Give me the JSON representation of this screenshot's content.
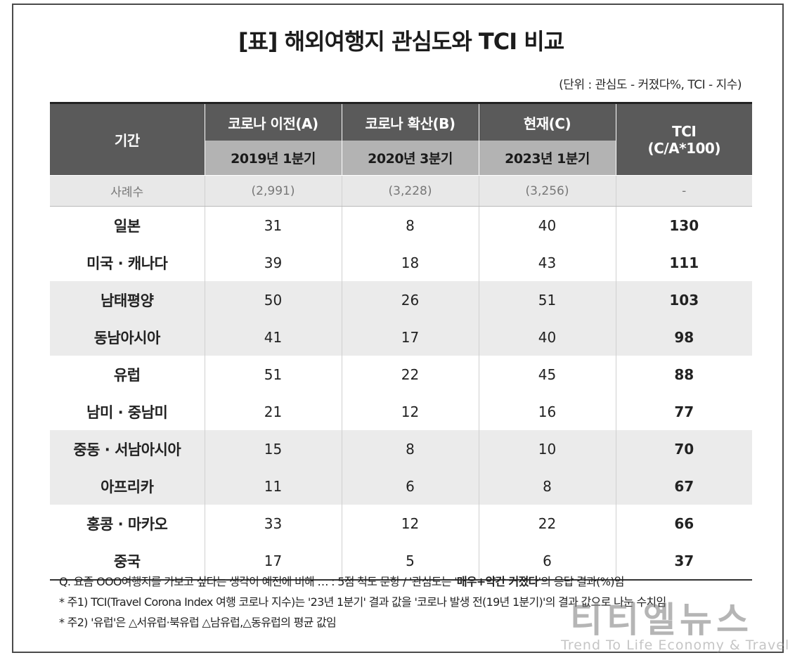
{
  "title": "[표] 해외여행지 관심도와 TCI 비교",
  "unit": "(단위 : 관심도 - 커졌다%, TCI - 지수)",
  "header": {
    "period_label": "기간",
    "col_a": "코로나 이전(A)",
    "col_b": "코로나 확산(B)",
    "col_c": "현재(C)",
    "col_a_sub": "2019년 1분기",
    "col_b_sub": "2020년 3분기",
    "col_c_sub": "2023년 1분기",
    "tci_line1": "TCI",
    "tci_line2": "(C/A*100)"
  },
  "sample": {
    "label": "사례수",
    "a": "(2,991)",
    "b": "(3,228)",
    "c": "(3,256)",
    "tci": "-"
  },
  "rows": [
    {
      "name": "일본",
      "a": "31",
      "b": "8",
      "c": "40",
      "tci": "130"
    },
    {
      "name": "미국 · 캐나다",
      "a": "39",
      "b": "18",
      "c": "43",
      "tci": "111"
    },
    {
      "name": "남태평양",
      "a": "50",
      "b": "26",
      "c": "51",
      "tci": "103"
    },
    {
      "name": "동남아시아",
      "a": "41",
      "b": "17",
      "c": "40",
      "tci": "98"
    },
    {
      "name": "유럽",
      "a": "51",
      "b": "22",
      "c": "45",
      "tci": "88"
    },
    {
      "name": "남미 · 중남미",
      "a": "21",
      "b": "12",
      "c": "16",
      "tci": "77"
    },
    {
      "name": "중동 · 서남아시아",
      "a": "15",
      "b": "8",
      "c": "10",
      "tci": "70"
    },
    {
      "name": "아프리카",
      "a": "11",
      "b": "6",
      "c": "8",
      "tci": "67"
    },
    {
      "name": "홍콩 · 마카오",
      "a": "33",
      "b": "12",
      "c": "22",
      "tci": "66"
    },
    {
      "name": "중국",
      "a": "17",
      "b": "5",
      "c": "6",
      "tci": "37"
    }
  ],
  "notes": {
    "q_pre": "Q. 요즘 OOO여행지를 가보고 싶다는 생각이 예전에 비해 … : 5점 척도 문항 / '관심도는 '",
    "q_bold": "매우+약간 커졌다",
    "q_post": "'의 응답 결과(%)임",
    "note1": "* 주1) TCI(Travel Corona Index 여행 코로나 지수)는 '23년 1분기' 결과 값을 '코로나 발생 전(19년 1분기)'의 결과 값으로 나눈 수치임",
    "note2": "* 주2) '유럽'은 △서유럽·북유럽 △남유럽,△동유럽의 평균 값임"
  },
  "watermark": {
    "main": "티티엘뉴스",
    "sub": "Trend To Life Economy & Travel"
  }
}
